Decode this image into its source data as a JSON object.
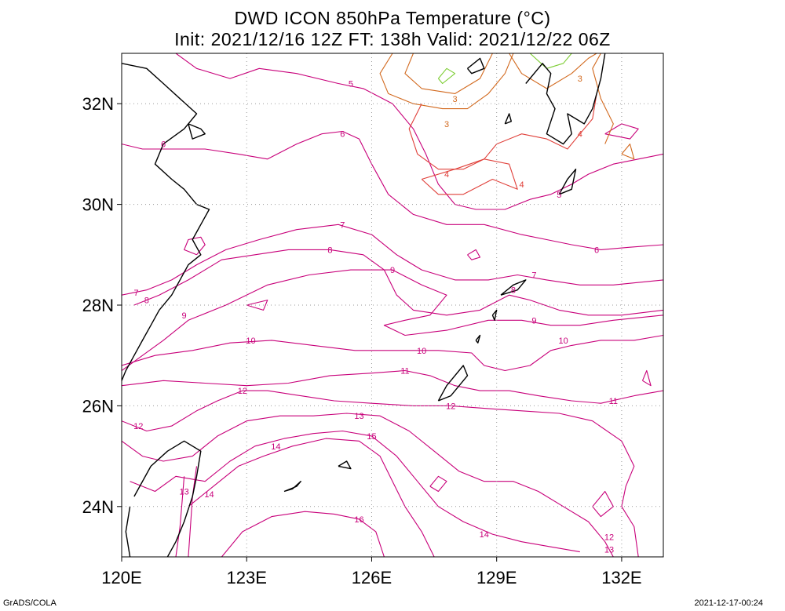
{
  "title": {
    "line1": "DWD ICON 850hPa Temperature (°C)",
    "line2": "Init: 2021/12/16 12Z  FT: 138h  Valid: 2021/12/22 06Z"
  },
  "axes": {
    "lon_ticks": [
      "120E",
      "123E",
      "126E",
      "129E",
      "132E"
    ],
    "lat_ticks": [
      "32N",
      "30N",
      "28N",
      "26N",
      "24N"
    ],
    "lon_range": [
      120,
      133
    ],
    "lat_range": [
      23,
      33
    ]
  },
  "contour_labels": [
    {
      "text": "5",
      "lon": 125.5,
      "lat": 32.4,
      "color": "#c8007a"
    },
    {
      "text": "6",
      "lon": 121.0,
      "lat": 31.2,
      "color": "#c8007a"
    },
    {
      "text": "6",
      "lon": 125.3,
      "lat": 31.4,
      "color": "#c8007a"
    },
    {
      "text": "3",
      "lon": 128.0,
      "lat": 32.1,
      "color": "#d2691e"
    },
    {
      "text": "3",
      "lon": 127.8,
      "lat": 31.6,
      "color": "#d2691e"
    },
    {
      "text": "3",
      "lon": 131.0,
      "lat": 32.5,
      "color": "#d2691e"
    },
    {
      "text": "4",
      "lon": 127.8,
      "lat": 30.6,
      "color": "#e0403a"
    },
    {
      "text": "4",
      "lon": 129.6,
      "lat": 30.4,
      "color": "#e0403a"
    },
    {
      "text": "4",
      "lon": 131.0,
      "lat": 31.4,
      "color": "#e0403a"
    },
    {
      "text": "5",
      "lon": 130.5,
      "lat": 30.2,
      "color": "#c8007a"
    },
    {
      "text": "7",
      "lon": 125.3,
      "lat": 29.6,
      "color": "#c8007a"
    },
    {
      "text": "6",
      "lon": 131.4,
      "lat": 29.1,
      "color": "#c8007a"
    },
    {
      "text": "8",
      "lon": 125.0,
      "lat": 29.1,
      "color": "#c8007a"
    },
    {
      "text": "9",
      "lon": 126.5,
      "lat": 28.7,
      "color": "#c8007a"
    },
    {
      "text": "7",
      "lon": 129.9,
      "lat": 28.6,
      "color": "#c8007a"
    },
    {
      "text": "8",
      "lon": 129.4,
      "lat": 28.3,
      "color": "#c8007a"
    },
    {
      "text": "7",
      "lon": 120.35,
      "lat": 28.25,
      "color": "#c8007a"
    },
    {
      "text": "8",
      "lon": 120.6,
      "lat": 28.1,
      "color": "#c8007a"
    },
    {
      "text": "9",
      "lon": 121.5,
      "lat": 27.8,
      "color": "#c8007a"
    },
    {
      "text": "9",
      "lon": 129.9,
      "lat": 27.7,
      "color": "#c8007a"
    },
    {
      "text": "10",
      "lon": 123.1,
      "lat": 27.3,
      "color": "#c8007a"
    },
    {
      "text": "10",
      "lon": 127.2,
      "lat": 27.1,
      "color": "#c8007a"
    },
    {
      "text": "10",
      "lon": 130.6,
      "lat": 27.3,
      "color": "#c8007a"
    },
    {
      "text": "11",
      "lon": 126.8,
      "lat": 26.7,
      "color": "#c8007a"
    },
    {
      "text": "12",
      "lon": 122.9,
      "lat": 26.3,
      "color": "#c8007a"
    },
    {
      "text": "12",
      "lon": 127.9,
      "lat": 26.0,
      "color": "#c8007a"
    },
    {
      "text": "11",
      "lon": 131.8,
      "lat": 26.1,
      "color": "#c8007a"
    },
    {
      "text": "13",
      "lon": 125.7,
      "lat": 25.8,
      "color": "#c8007a"
    },
    {
      "text": "12",
      "lon": 120.4,
      "lat": 25.6,
      "color": "#c8007a"
    },
    {
      "text": "15",
      "lon": 126.0,
      "lat": 25.4,
      "color": "#c8007a"
    },
    {
      "text": "14",
      "lon": 123.7,
      "lat": 25.2,
      "color": "#c8007a"
    },
    {
      "text": "13",
      "lon": 121.5,
      "lat": 24.3,
      "color": "#c8007a"
    },
    {
      "text": "14",
      "lon": 122.1,
      "lat": 24.25,
      "color": "#c8007a"
    },
    {
      "text": "16",
      "lon": 125.7,
      "lat": 23.75,
      "color": "#c8007a"
    },
    {
      "text": "14",
      "lon": 128.7,
      "lat": 23.45,
      "color": "#c8007a"
    },
    {
      "text": "12",
      "lon": 131.7,
      "lat": 23.4,
      "color": "#c8007a"
    },
    {
      "text": "13",
      "lon": 131.7,
      "lat": 23.15,
      "color": "#c8007a"
    }
  ],
  "footer": {
    "left": "GrADS/COLA",
    "right": "2021-12-17-00:24"
  },
  "colors": {
    "contour_magenta": "#c8007a",
    "contour_red": "#e0403a",
    "contour_orange": "#d2691e",
    "contour_green": "#7ccd32",
    "coast": "#000000",
    "grid": "#9a9a9a"
  }
}
